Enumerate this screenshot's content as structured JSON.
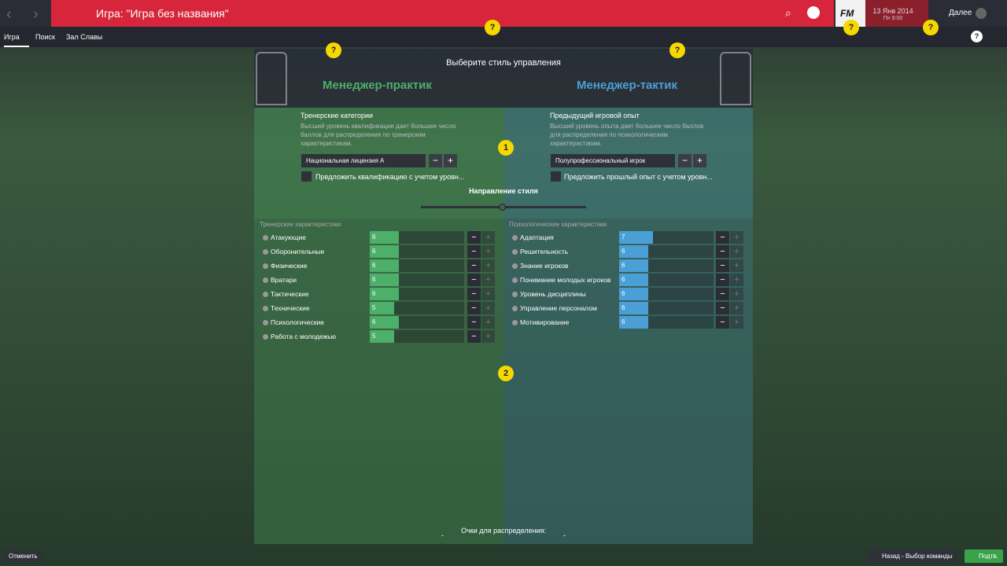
{
  "header": {
    "title": "Игра: \"Игра без названия\"",
    "logo": "FM",
    "date": "13 Янв 2014",
    "time": "Пн 9:00",
    "next": "Далее"
  },
  "nav": {
    "tabs": [
      "Игра",
      "Поиск",
      "Зал Славы"
    ]
  },
  "help": "?",
  "steps": [
    "1",
    "2"
  ],
  "controls": {
    "minus": "−",
    "plus": "+"
  },
  "panel": {
    "title": "Выберите стиль управления",
    "style_direction": "Направление стиля",
    "points_label": "Очки для распределения:",
    "points_left": "-",
    "points_right": "-",
    "left": {
      "name": "Менеджер-практик",
      "section_title": "Тренерские категории",
      "description": "Высший уровень квалификации дает большее число баллов для распределения по тренерским характеристикам.",
      "select": "Национальная лицензия А",
      "checkbox": "Предложить квалификацию с учетом уровн...",
      "attributes_title": "Тренерские характеристики",
      "attributes": [
        {
          "name": "Атакующие",
          "value": 6
        },
        {
          "name": "Оборонительные",
          "value": 6
        },
        {
          "name": "Физические",
          "value": 6
        },
        {
          "name": "Вратари",
          "value": 6
        },
        {
          "name": "Тактические",
          "value": 6
        },
        {
          "name": "Технические",
          "value": 5
        },
        {
          "name": "Психологические",
          "value": 6
        },
        {
          "name": "Работа с молодежью",
          "value": 5
        }
      ]
    },
    "right": {
      "name": "Менеджер-тактик",
      "section_title": "Предыдущий игровой опыт",
      "description": "Высший уровень опыта дает большее число баллов для распределения по психологическим характеристикам.",
      "select": "Полупрофессиональный игрок",
      "checkbox": "Предложить прошлый опыт с учетом уровн...",
      "attributes_title": "Психологические характеристики",
      "attributes": [
        {
          "name": "Адаптация",
          "value": 7
        },
        {
          "name": "Решительность",
          "value": 6
        },
        {
          "name": "Знание игроков",
          "value": 6
        },
        {
          "name": "Понимание молодых игроков",
          "value": 6
        },
        {
          "name": "Уровень дисциплины",
          "value": 6
        },
        {
          "name": "Управление персоналом",
          "value": 6
        },
        {
          "name": "Мотивирование",
          "value": 6
        }
      ]
    }
  },
  "footer": {
    "cancel": "Отменить",
    "back": "Назад - Выбор команды",
    "confirm": "Подтв."
  }
}
